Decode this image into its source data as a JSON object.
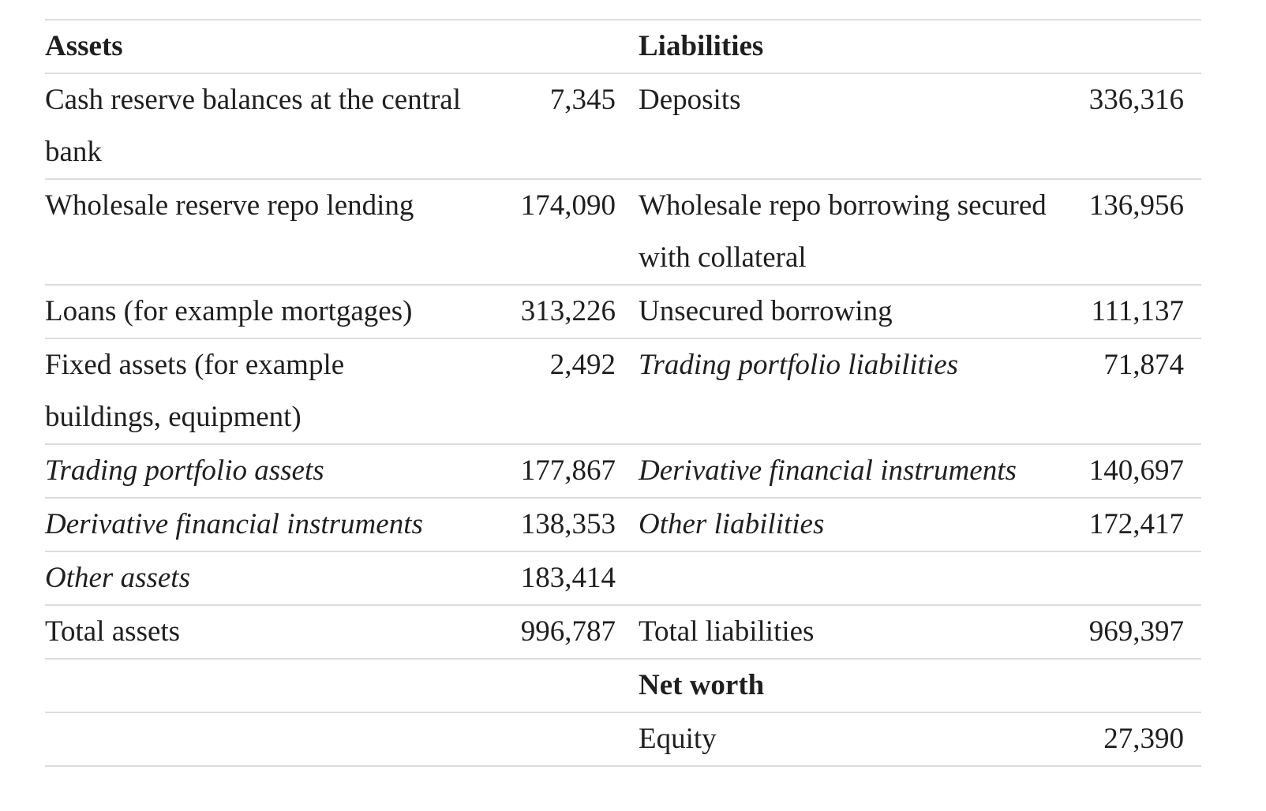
{
  "table": {
    "assets_header": "Assets",
    "liabilities_header": "Liabilities",
    "rows": [
      {
        "asset": "Cash reserve balances at the central bank",
        "asset_value": "7,345",
        "liability": "Deposits",
        "liability_value": "336,316"
      },
      {
        "asset": "Wholesale reserve repo lending",
        "asset_value": "174,090",
        "liability": "Wholesale repo borrowing secured with collateral",
        "liability_value": "136,956"
      },
      {
        "asset": "Loans (for example mortgages)",
        "asset_value": "313,226",
        "liability": "Unsecured borrowing",
        "liability_value": "111,137"
      },
      {
        "asset": "Fixed assets (for example buildings, equipment)",
        "asset_value": "2,492",
        "liability": "Trading portfolio liabilities",
        "liability_value": "71,874"
      },
      {
        "asset": "Trading portfolio assets",
        "asset_value": "177,867",
        "liability": "Derivative financial instruments",
        "liability_value": "140,697"
      },
      {
        "asset": "Derivative financial instruments",
        "asset_value": "138,353",
        "liability": "Other liabilities",
        "liability_value": "172,417"
      },
      {
        "asset": "Other assets",
        "asset_value": "183,414",
        "liability": "",
        "liability_value": ""
      },
      {
        "asset": "Total assets",
        "asset_value": "996,787",
        "liability": "Total liabilities",
        "liability_value": "969,397"
      }
    ],
    "net_worth_header": "Net worth",
    "equity_label": "Equity",
    "equity_value": "27,390"
  }
}
